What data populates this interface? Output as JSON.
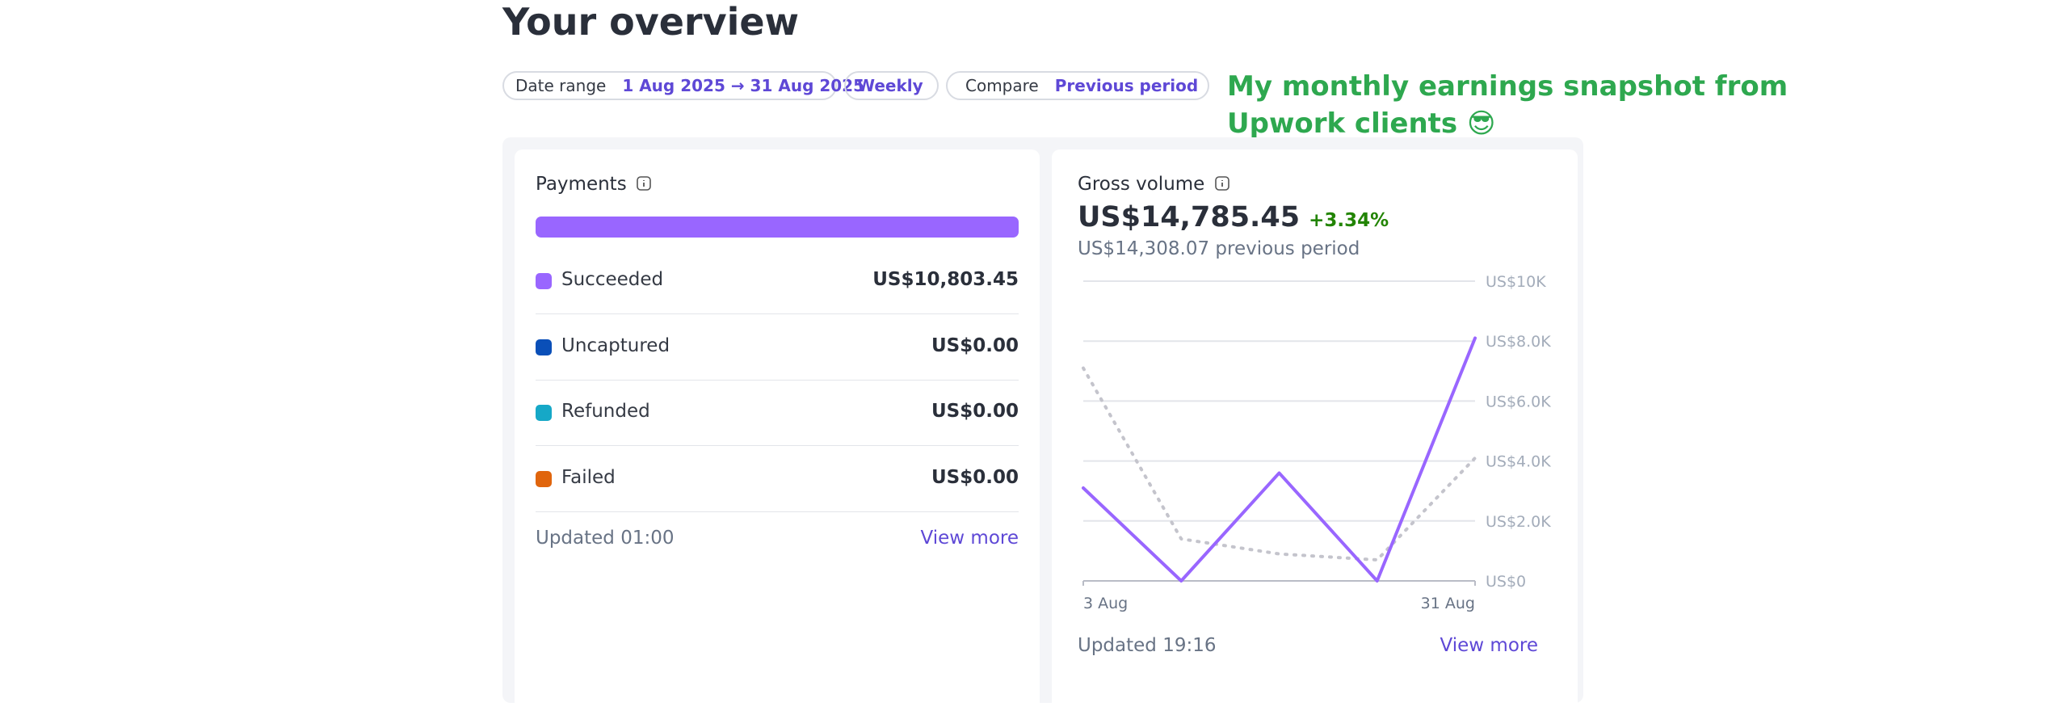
{
  "header": {
    "title": "Your overview"
  },
  "filters": {
    "date_range_label": "Date range",
    "date_range_value": "1 Aug 2025 → 31 Aug 2025",
    "interval": "Weekly",
    "compare_label": "Compare",
    "compare_value": "Previous period"
  },
  "annotation": {
    "lines": [
      "My monthly earnings snapshot from",
      "Upwork clients 😎"
    ]
  },
  "payments": {
    "title": "Payments",
    "rows": [
      {
        "label": "Succeeded",
        "value": "US$10,803.45",
        "color": "#9966ff"
      },
      {
        "label": "Uncaptured",
        "value": "US$0.00",
        "color": "#0a4fb8"
      },
      {
        "label": "Refunded",
        "value": "US$0.00",
        "color": "#16a8c7"
      },
      {
        "label": "Failed",
        "value": "US$0.00",
        "color": "#e0650d"
      }
    ],
    "updated": "Updated 01:00",
    "link": "View more"
  },
  "gross_volume": {
    "title": "Gross volume",
    "amount": "US$14,785.45",
    "change": "+3.34%",
    "previous": "US$14,308.07 previous period",
    "updated": "Updated 19:16",
    "link": "View more",
    "chart_data": {
      "type": "line",
      "categories": [
        "3 Aug",
        null,
        null,
        null,
        "31 Aug"
      ],
      "series": [
        {
          "color": "#9966ff",
          "dashed": false,
          "values": [
            3100,
            0,
            3600,
            0,
            8100
          ]
        },
        {
          "color": "#c4c4cc",
          "dashed": true,
          "values": [
            7100,
            1400,
            900,
            700,
            4100
          ]
        }
      ],
      "ylim": [
        0,
        10000
      ],
      "yticks": [
        {
          "value": 0,
          "label": "US$0"
        },
        {
          "value": 2000,
          "label": "US$2.0K"
        },
        {
          "value": 4000,
          "label": "US$4.0K"
        },
        {
          "value": 6000,
          "label": "US$6.0K"
        },
        {
          "value": 8000,
          "label": "US$8.0K"
        },
        {
          "value": 10000,
          "label": "US$10K"
        }
      ],
      "grid": true
    }
  }
}
